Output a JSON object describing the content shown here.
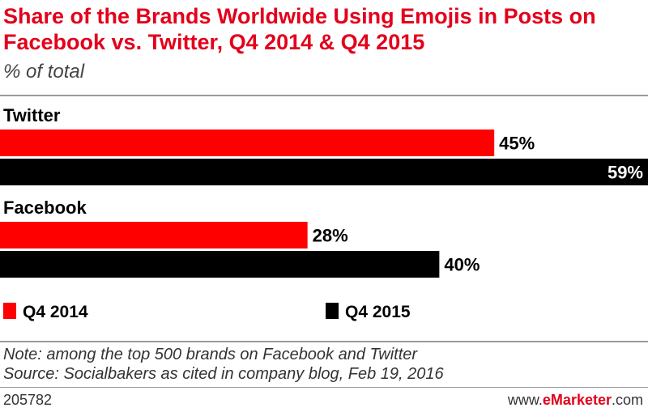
{
  "chart_data": {
    "type": "bar",
    "orientation": "horizontal",
    "title": "Share of the Brands Worldwide Using Emojis in Posts on Facebook vs. Twitter, Q4 2014 & Q4 2015",
    "subtitle": "% of total",
    "categories": [
      "Twitter",
      "Facebook"
    ],
    "series": [
      {
        "name": "Q4 2014",
        "color": "#ff0000",
        "values": [
          45,
          28
        ],
        "labels": [
          "45%",
          "28%"
        ]
      },
      {
        "name": "Q4 2015",
        "color": "#000000",
        "values": [
          59,
          40
        ],
        "labels": [
          "59%",
          "40%"
        ]
      }
    ],
    "xlim": [
      0,
      59
    ],
    "grid": false,
    "legend_position": "bottom"
  },
  "note": "Note: among the top 500 brands on Facebook and Twitter",
  "source": "Source: Socialbakers as cited in company blog, Feb 19, 2016",
  "footer": {
    "chart_id": "205782",
    "brand_prefix": "www.",
    "brand_name": "eMarketer",
    "brand_suffix": ".com"
  },
  "colors": {
    "accent": "#e3001b"
  }
}
